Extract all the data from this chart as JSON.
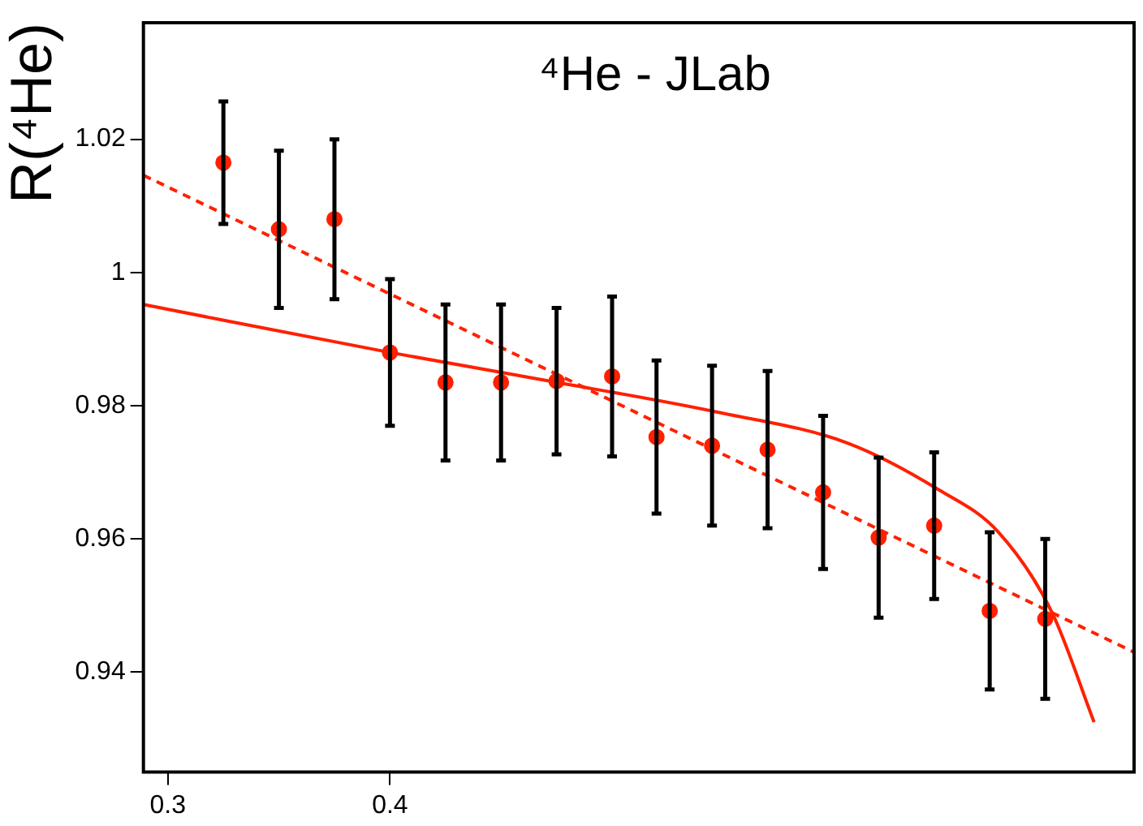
{
  "chart_data": {
    "type": "scatter",
    "title": "⁴He - JLab",
    "ylabel": "R(⁴He)",
    "xlim": [
      0.289,
      0.735
    ],
    "ylim": [
      0.925,
      1.0375
    ],
    "xticks": [
      0.3,
      0.4
    ],
    "yticks": [
      0.94,
      0.96,
      0.98,
      1,
      1.02
    ],
    "grid": false,
    "legend": false,
    "series": [
      {
        "marker": "circle",
        "color": "#ff2000",
        "x": [
          0.325,
          0.35,
          0.375,
          0.4,
          0.425,
          0.45,
          0.475,
          0.5,
          0.52,
          0.545,
          0.57,
          0.595,
          0.62,
          0.645,
          0.67,
          0.695
        ],
        "values": [
          1.0165,
          1.0065,
          1.008,
          0.988,
          0.9835,
          0.9835,
          0.9837,
          0.9844,
          0.9753,
          0.974,
          0.9734,
          0.967,
          0.9602,
          0.962,
          0.9492,
          0.948
        ],
        "errors": [
          0.0092,
          0.0118,
          0.012,
          0.011,
          0.0117,
          0.0117,
          0.011,
          0.012,
          0.0115,
          0.012,
          0.0118,
          0.0115,
          0.012,
          0.011,
          0.0118,
          0.012
        ]
      },
      {
        "type": "line",
        "marker": "none",
        "line_style": "dashed",
        "color": "#ff2000",
        "x": [
          0.289,
          0.735
        ],
        "values": [
          1.0146,
          0.943
        ]
      },
      {
        "type": "line",
        "marker": "none",
        "line_style": "solid",
        "color": "#ff2000",
        "x": [
          0.289,
          0.4,
          0.472,
          0.548,
          0.606,
          0.647,
          0.674,
          0.698,
          0.717
        ],
        "values": [
          0.9952,
          0.988,
          0.9837,
          0.979,
          0.9744,
          0.9674,
          0.961,
          0.949,
          0.9325
        ]
      }
    ]
  }
}
